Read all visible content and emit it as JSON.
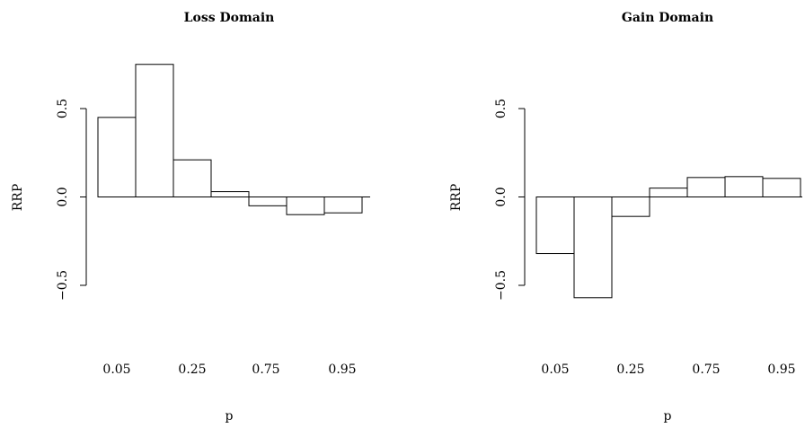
{
  "chart_data": [
    {
      "type": "bar",
      "title": "Loss Domain",
      "xlabel": "p",
      "ylabel": "RRP",
      "ylim": [
        -0.5,
        0.5
      ],
      "yticks": [
        "-0.5",
        "0.0",
        "0.5"
      ],
      "xtick_labels": [
        "0.05",
        "0.25",
        "0.75",
        "0.95"
      ],
      "values": [
        0.45,
        0.75,
        0.21,
        0.03,
        -0.05,
        -0.1,
        -0.09
      ],
      "zero_line": true,
      "grid": false
    },
    {
      "type": "bar",
      "title": "Gain Domain",
      "xlabel": "p",
      "ylabel": "RRP",
      "ylim": [
        -0.5,
        0.5
      ],
      "yticks": [
        "-0.5",
        "0.0",
        "0.5"
      ],
      "xtick_labels": [
        "0.05",
        "0.25",
        "0.75",
        "0.95"
      ],
      "values": [
        -0.32,
        -0.57,
        -0.11,
        0.05,
        0.11,
        0.115,
        0.105
      ],
      "zero_line": true,
      "grid": false
    }
  ]
}
